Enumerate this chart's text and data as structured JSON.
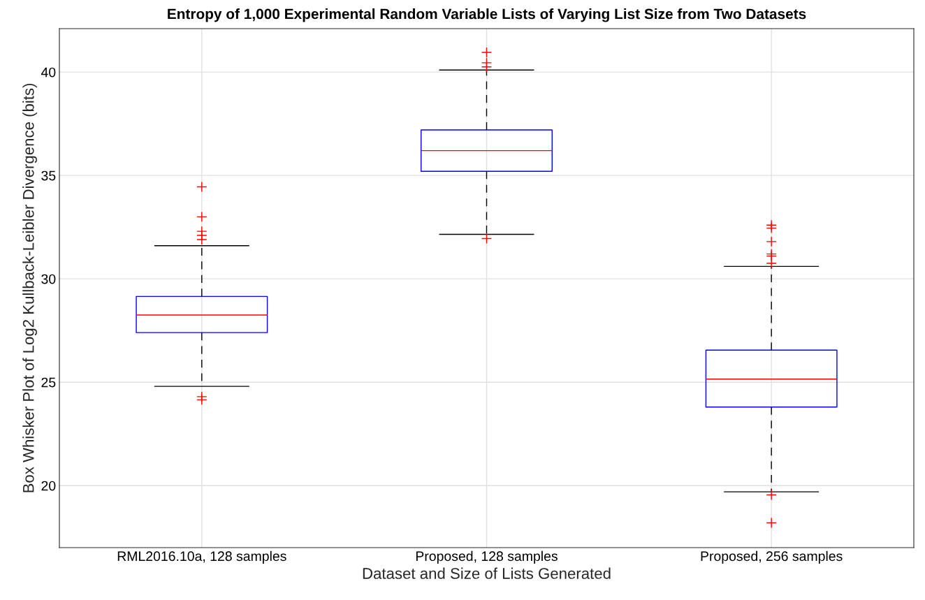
{
  "chart_data": {
    "type": "box",
    "title": "Entropy of 1,000 Experimental Random Variable Lists of Varying List Size from Two Datasets",
    "xlabel": "Dataset and Size of Lists Generated",
    "ylabel": "Box Whisker Plot of Log2 Kullback-Leibler Divergence (bits)",
    "categories": [
      "RML2016.10a, 128 samples",
      "Proposed, 128 samples",
      "Proposed, 256 samples"
    ],
    "boxes": [
      {
        "low": 24.8,
        "q1": 27.4,
        "median": 28.25,
        "q3": 29.15,
        "high": 31.6,
        "outliers": [
          34.45,
          33.0,
          32.3,
          32.1,
          31.9,
          24.3,
          24.15
        ]
      },
      {
        "low": 32.15,
        "q1": 35.2,
        "median": 36.2,
        "q3": 37.2,
        "high": 40.1,
        "outliers": [
          40.95,
          40.45,
          40.25,
          31.95
        ]
      },
      {
        "low": 19.7,
        "q1": 23.8,
        "median": 25.15,
        "q3": 26.55,
        "high": 30.6,
        "outliers": [
          32.6,
          32.45,
          31.8,
          31.2,
          31.1,
          30.75,
          19.55,
          18.2
        ]
      }
    ],
    "color": "#0000ff",
    "ylim": [
      17,
      42.1
    ],
    "yticks": [
      20,
      25,
      30,
      35,
      40
    ],
    "grid": true
  }
}
